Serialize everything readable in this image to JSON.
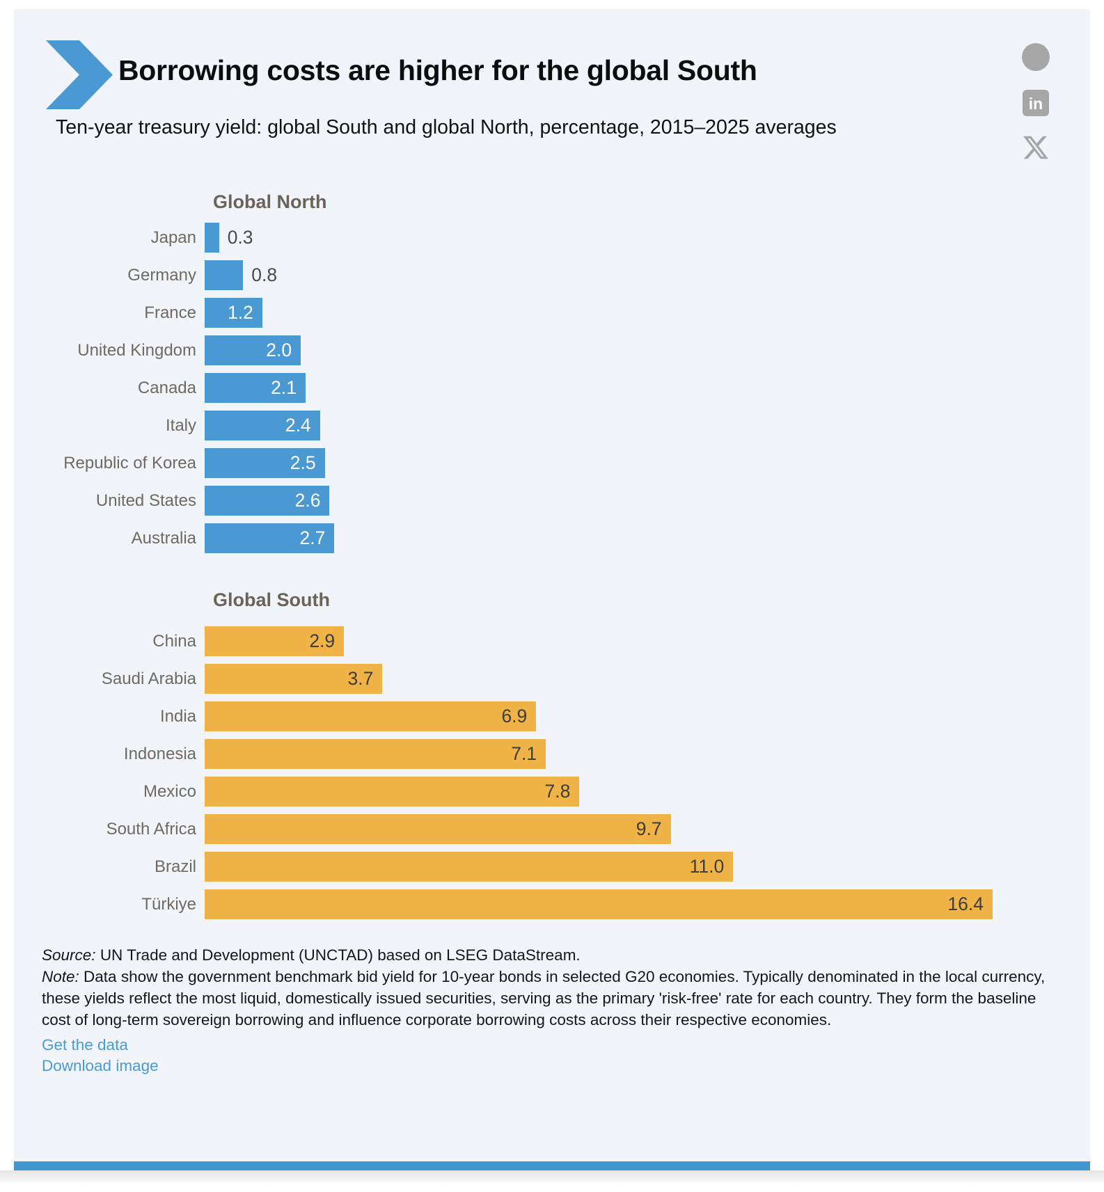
{
  "header": {
    "title": "Borrowing costs are higher for the global South",
    "subtitle": "Ten-year treasury yield: global South and global North, percentage, 2015–2025 averages"
  },
  "share": {
    "icons": [
      "facebook",
      "linkedin",
      "x"
    ]
  },
  "chart_data": {
    "type": "bar",
    "orientation": "horizontal",
    "unit": "percentage",
    "xmax": 16.4,
    "value_label_decimals": 1,
    "value_color_outside": "#4a4a46",
    "groups": [
      {
        "label": "Global North",
        "bar_color": "#4a99d2",
        "value_color_inside": "#ffffff",
        "items": [
          {
            "country": "Japan",
            "value": 0.3
          },
          {
            "country": "Germany",
            "value": 0.8
          },
          {
            "country": "France",
            "value": 1.2
          },
          {
            "country": "United Kingdom",
            "value": 2.0
          },
          {
            "country": "Canada",
            "value": 2.1
          },
          {
            "country": "Italy",
            "value": 2.4
          },
          {
            "country": "Republic of Korea",
            "value": 2.5
          },
          {
            "country": "United States",
            "value": 2.6
          },
          {
            "country": "Australia",
            "value": 2.7
          }
        ]
      },
      {
        "label": "Global South",
        "bar_color": "#efb347",
        "value_color_inside": "#3d3d3a",
        "items": [
          {
            "country": "China",
            "value": 2.9
          },
          {
            "country": "Saudi Arabia",
            "value": 3.7
          },
          {
            "country": "India",
            "value": 6.9
          },
          {
            "country": "Indonesia",
            "value": 7.1
          },
          {
            "country": "Mexico",
            "value": 7.8
          },
          {
            "country": "South Africa",
            "value": 9.7
          },
          {
            "country": "Brazil",
            "value": 11.0
          },
          {
            "country": "Türkiye",
            "value": 16.4
          }
        ]
      }
    ]
  },
  "footer": {
    "source_label": "Source:",
    "source_text": "UN Trade and Development (UNCTAD) based on LSEG DataStream.",
    "note_label": "Note:",
    "note_text": "Data show the government benchmark bid yield for 10-year bonds in selected G20 economies. Typically denominated in the local currency, these yields reflect the most liquid, domestically issued securities, serving as the primary 'risk-free' rate for each country. They form the baseline cost of long-term sovereign borrowing and influence corporate borrowing costs across their respective economies.",
    "links": [
      {
        "label": "Get the data"
      },
      {
        "label": "Download image"
      }
    ]
  },
  "colors": {
    "accent_blue": "#4a99d2",
    "accent_orange": "#efb347",
    "card_background": "#f1f5f9",
    "section_title": "#6b6259",
    "country_label": "#6f6962",
    "icon_gray": "#a6a6a6",
    "brand_bar": "#4397d0"
  }
}
